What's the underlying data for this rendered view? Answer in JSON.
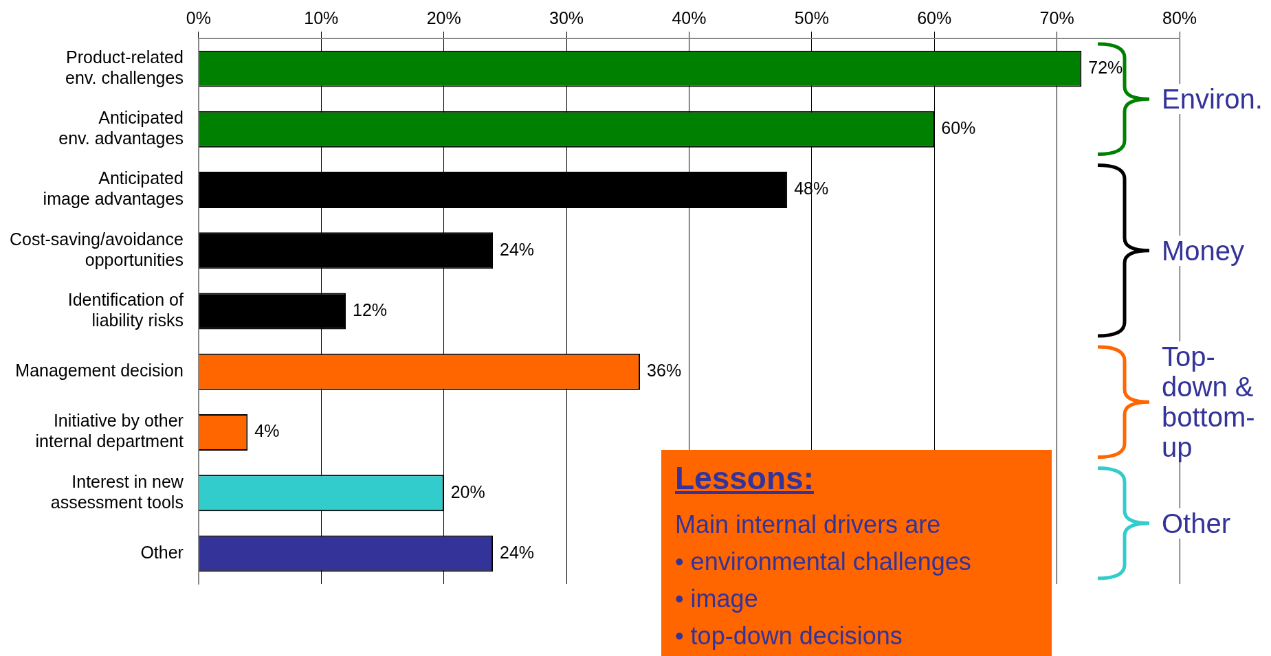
{
  "chart_data": {
    "type": "bar",
    "orientation": "horizontal",
    "categories": [
      "Product-related env. challenges",
      "Anticipated env. advantages",
      "Anticipated image advantages",
      "Cost-saving/avoidance opportunities",
      "Identification of liability risks",
      "Management decision",
      "Initiative by other internal department",
      "Interest in new assessment tools",
      "Other"
    ],
    "values": [
      72,
      60,
      48,
      24,
      12,
      36,
      4,
      20,
      24
    ],
    "colors": [
      "#008000",
      "#008000",
      "#000000",
      "#000000",
      "#000000",
      "#ff6600",
      "#ff6600",
      "#33cccc",
      "#333399"
    ],
    "xlim": [
      0,
      80
    ],
    "xticks": [
      {
        "value": 0,
        "label": "0%"
      },
      {
        "value": 10,
        "label": "10%"
      },
      {
        "value": 20,
        "label": "20%"
      },
      {
        "value": 30,
        "label": "30%"
      },
      {
        "value": 40,
        "label": "40%"
      },
      {
        "value": 50,
        "label": "50%"
      },
      {
        "value": 60,
        "label": "60%"
      },
      {
        "value": 70,
        "label": "70%"
      },
      {
        "value": 80,
        "label": "80%"
      }
    ],
    "value_labels": [
      "72%",
      "60%",
      "48%",
      "24%",
      "12%",
      "36%",
      "4%",
      "20%",
      "24%"
    ],
    "grid": "x",
    "legend": false,
    "annotations": [
      "Environ.",
      "Money",
      "Top-down & bottom-up",
      "Other",
      "Lessons:",
      "Main internal drivers are",
      "• environmental challenges",
      "• image",
      "• top-down decisions"
    ]
  }
}
